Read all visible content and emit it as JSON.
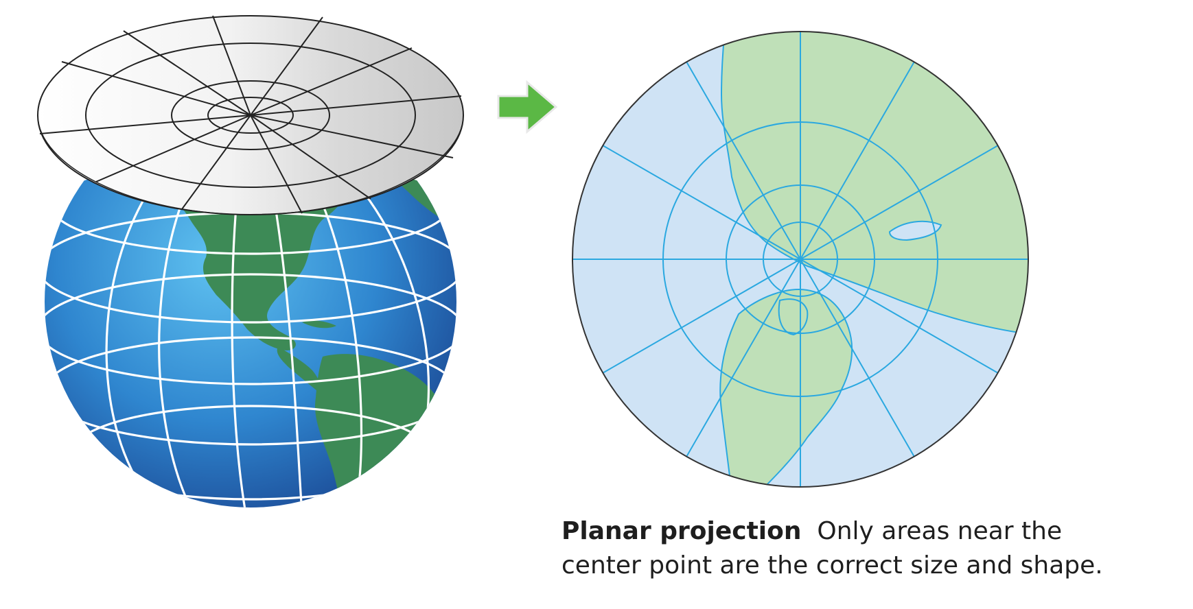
{
  "caption": {
    "title": "Planar projection",
    "text_line1": "Only areas near the",
    "text_line2": "center point are the correct size and shape."
  },
  "icons": {
    "arrow": "right-arrow-icon"
  },
  "colors": {
    "ocean_globe": "#3a8fd6",
    "land_globe": "#3d8a56",
    "graticule_globe": "#ffffff",
    "plane_fill": "#e6e6e6",
    "plane_lines": "#222222",
    "arrow": "#5bb845",
    "map_ocean": "#cfe3f5",
    "map_land": "#bfe0b8",
    "map_lines": "#2aa8e0",
    "caption_text": "#1e1e1e"
  }
}
